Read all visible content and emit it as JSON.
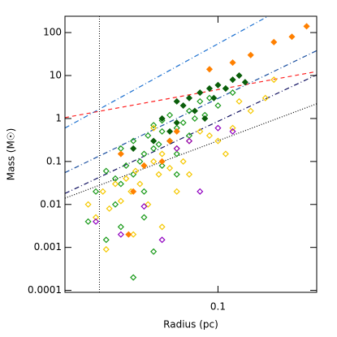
{
  "chart_data": {
    "type": "scatter",
    "xlabel": "Radius (pc)",
    "ylabel": "Mass (M☉)",
    "xlog": true,
    "ylog": true,
    "xlim": [
      0.015,
      0.34
    ],
    "ylim": [
      9e-05,
      240
    ],
    "xticks": [
      0.1
    ],
    "yticks": [
      0.0001,
      0.001,
      0.01,
      0.1,
      1,
      10,
      100
    ],
    "series": [
      {
        "color": "#1a9a1a",
        "marker": "open-diamond",
        "x": [
          0.02,
          0.022,
          0.025,
          0.025,
          0.028,
          0.03,
          0.03,
          0.032,
          0.035,
          0.035,
          0.038,
          0.04,
          0.04,
          0.042,
          0.045,
          0.045,
          0.048,
          0.05,
          0.05,
          0.055,
          0.055,
          0.06,
          0.06,
          0.065,
          0.07,
          0.07,
          0.075,
          0.08,
          0.085,
          0.09,
          0.1,
          0.11,
          0.12,
          0.03,
          0.04,
          0.028,
          0.05,
          0.035,
          0.06,
          0.045
        ],
        "values": [
          0.004,
          0.02,
          0.06,
          0.0015,
          0.01,
          0.03,
          0.2,
          0.08,
          0.05,
          0.3,
          0.1,
          0.15,
          0.02,
          0.4,
          0.2,
          0.0008,
          0.25,
          0.5,
          0.08,
          0.3,
          1.2,
          0.6,
          0.15,
          0.8,
          1.5,
          0.4,
          1.0,
          2.5,
          1.2,
          3,
          2,
          5,
          4,
          0.003,
          0.005,
          0.04,
          0.9,
          0.0002,
          0.05,
          0.7
        ]
      },
      {
        "color": "#f5c800",
        "marker": "open-diamond",
        "x": [
          0.02,
          0.022,
          0.024,
          0.026,
          0.028,
          0.03,
          0.032,
          0.034,
          0.036,
          0.038,
          0.04,
          0.042,
          0.045,
          0.048,
          0.05,
          0.055,
          0.06,
          0.065,
          0.07,
          0.08,
          0.09,
          0.1,
          0.12,
          0.15,
          0.18,
          0.2,
          0.035,
          0.05,
          0.06,
          0.025,
          0.045,
          0.07,
          0.11,
          0.13
        ],
        "values": [
          0.01,
          0.005,
          0.02,
          0.008,
          0.03,
          0.012,
          0.04,
          0.02,
          0.06,
          0.03,
          0.08,
          0.01,
          0.1,
          0.05,
          0.15,
          0.07,
          0.2,
          0.1,
          0.3,
          0.5,
          0.4,
          0.3,
          0.6,
          1.5,
          3,
          8,
          0.002,
          0.003,
          0.02,
          0.0009,
          0.6,
          0.05,
          0.15,
          2.5
        ]
      },
      {
        "color": "#0b5e0b",
        "marker": "filled-diamond",
        "x": [
          0.035,
          0.045,
          0.05,
          0.055,
          0.06,
          0.065,
          0.07,
          0.075,
          0.08,
          0.09,
          0.1,
          0.11,
          0.12,
          0.14,
          0.06,
          0.085,
          0.13,
          0.095
        ],
        "values": [
          0.2,
          0.3,
          1.0,
          0.5,
          0.8,
          2,
          3,
          1.5,
          4,
          5,
          6,
          5,
          8,
          7,
          2.5,
          1,
          10,
          3
        ]
      },
      {
        "color": "#ff8000",
        "marker": "filled-diamond",
        "x": [
          0.03,
          0.035,
          0.04,
          0.05,
          0.055,
          0.06,
          0.09,
          0.12,
          0.15,
          0.2,
          0.25,
          0.3,
          0.033
        ],
        "values": [
          0.15,
          0.02,
          0.08,
          0.1,
          0.3,
          0.5,
          14,
          20,
          30,
          60,
          80,
          140,
          0.002
        ]
      },
      {
        "color": "#9000c0",
        "marker": "open-diamond",
        "x": [
          0.022,
          0.03,
          0.04,
          0.06,
          0.07,
          0.1,
          0.12,
          0.05,
          0.08
        ],
        "values": [
          0.004,
          0.002,
          0.009,
          0.2,
          0.3,
          0.6,
          0.5,
          0.0015,
          0.02
        ]
      }
    ],
    "lines": [
      {
        "color": "#1a6fd0",
        "dash": "6 3 1 3",
        "x": [
          0.015,
          0.186
        ],
        "values": [
          0.6,
          240
        ]
      },
      {
        "color": "#1a4fa0",
        "dash": "6 3 1 3",
        "x": [
          0.015,
          0.34
        ],
        "values": [
          0.055,
          38
        ]
      },
      {
        "color": "#101060",
        "dash": "6 3 1 3",
        "x": [
          0.015,
          0.34
        ],
        "values": [
          0.018,
          10.4
        ]
      },
      {
        "color": "#000000",
        "dash": "1 2",
        "x": [
          0.015,
          0.34
        ],
        "values": [
          0.014,
          2.2
        ]
      },
      {
        "color": "#ff2020",
        "dash": "5 4",
        "x": [
          0.015,
          0.34
        ],
        "values": [
          1.05,
          12.4
        ]
      }
    ],
    "vline": {
      "x": 0.023,
      "color": "#000000",
      "dash": "1 2"
    }
  }
}
